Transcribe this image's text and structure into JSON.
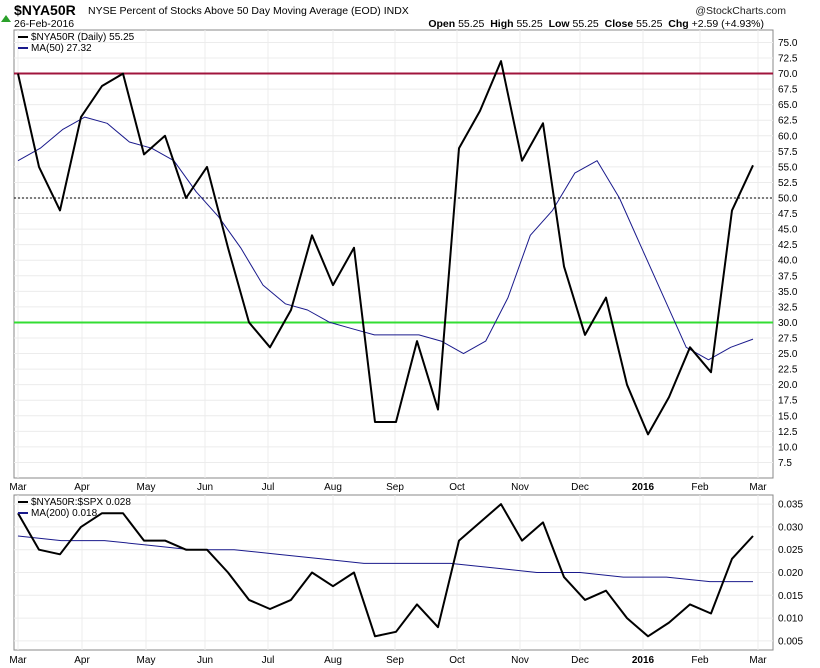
{
  "header": {
    "symbol": "$NYA50R",
    "description": "NYSE Percent of Stocks Above 50 Day Moving Average (EOD)  INDX",
    "brand": "@StockCharts.com",
    "date": "26-Feb-2016",
    "open_label": "Open",
    "open": "55.25",
    "high_label": "High",
    "high": "55.25",
    "low_label": "Low",
    "low": "55.25",
    "close_label": "Close",
    "close": "55.25",
    "chg_label": "Chg",
    "chg": "+2.59 (+4.93%)"
  },
  "colors": {
    "price": "#000000",
    "ma": "#1a1a8c",
    "red_line": "#a0143c",
    "green_line": "#33dd33",
    "grid": "#ececec",
    "up_arrow": "#2aa02a"
  },
  "legend_main": [
    {
      "text": "$NYA50R (Daily) 55.25",
      "color": "#000000"
    },
    {
      "text": "MA(50) 27.32",
      "color": "#1a1a8c"
    }
  ],
  "legend_lower": [
    {
      "text": "$NYA50R:$SPX 0.028",
      "color": "#000000"
    },
    {
      "text": "MA(200) 0.018",
      "color": "#1a1a8c"
    }
  ],
  "month_labels": [
    {
      "label": "Mar",
      "bold": false
    },
    {
      "label": "Apr",
      "bold": false
    },
    {
      "label": "May",
      "bold": false
    },
    {
      "label": "Jun",
      "bold": false
    },
    {
      "label": "Jul",
      "bold": false
    },
    {
      "label": "Aug",
      "bold": false
    },
    {
      "label": "Sep",
      "bold": false
    },
    {
      "label": "Oct",
      "bold": false
    },
    {
      "label": "Nov",
      "bold": false
    },
    {
      "label": "Dec",
      "bold": false
    },
    {
      "label": "2016",
      "bold": true
    },
    {
      "label": "Feb",
      "bold": false
    },
    {
      "label": "Mar",
      "bold": false
    }
  ],
  "chart_data": [
    {
      "type": "line",
      "title": "NYSE Percent of Stocks Above 50 Day Moving Average (EOD)",
      "x_dates": [
        "2015-02-27",
        "2015-03-10",
        "2015-03-20",
        "2015-03-31",
        "2015-04-10",
        "2015-04-21",
        "2015-04-30",
        "2015-05-11",
        "2015-05-21",
        "2015-06-01",
        "2015-06-11",
        "2015-06-22",
        "2015-07-01",
        "2015-07-13",
        "2015-07-23",
        "2015-08-03",
        "2015-08-13",
        "2015-08-24",
        "2015-09-03",
        "2015-09-15",
        "2015-09-25",
        "2015-10-06",
        "2015-10-16",
        "2015-10-27",
        "2015-11-06",
        "2015-11-17",
        "2015-11-27",
        "2015-12-08",
        "2015-12-18",
        "2015-12-30",
        "2016-01-11",
        "2016-01-21",
        "2016-02-02",
        "2016-02-12",
        "2016-02-24",
        "2016-02-26"
      ],
      "ylim": [
        5,
        77
      ],
      "y_ticks": [
        7.5,
        10.0,
        12.5,
        15.0,
        17.5,
        20.0,
        22.5,
        25.0,
        27.5,
        30.0,
        32.5,
        35.0,
        37.5,
        40.0,
        42.5,
        45.0,
        47.5,
        50.0,
        52.5,
        55.0,
        57.5,
        60.0,
        62.5,
        65.0,
        67.5,
        70.0,
        72.5,
        75.0
      ],
      "horizontal_lines": [
        {
          "value": 70,
          "color": "#a0143c"
        },
        {
          "value": 30,
          "color": "#33dd33"
        },
        {
          "value": 50,
          "style": "dotted",
          "color": "#000000"
        }
      ],
      "series": [
        {
          "name": "$NYA50R (Daily)",
          "values": [
            70,
            55,
            48,
            63,
            68,
            70,
            57,
            60,
            50,
            55,
            42,
            30,
            26,
            32,
            44,
            36,
            42,
            14,
            14,
            27,
            16,
            58,
            64,
            72,
            56,
            62,
            39,
            28,
            34,
            20,
            12,
            18,
            26,
            22,
            48,
            55.25
          ]
        },
        {
          "name": "MA(50)",
          "values": [
            56,
            58,
            61,
            63,
            62,
            59,
            58,
            56,
            51,
            47,
            42,
            36,
            33,
            32,
            30,
            29,
            28,
            28,
            28,
            27,
            25,
            27,
            34,
            44,
            48,
            54,
            56,
            50,
            42,
            34,
            26,
            24,
            26,
            27.32
          ]
        }
      ]
    },
    {
      "type": "line",
      "title": "$NYA50R:$SPX",
      "ylim": [
        0.003,
        0.037
      ],
      "y_ticks": [
        0.005,
        0.01,
        0.015,
        0.02,
        0.025,
        0.03,
        0.035
      ],
      "series": [
        {
          "name": "$NYA50R:$SPX",
          "values": [
            0.033,
            0.025,
            0.024,
            0.03,
            0.033,
            0.033,
            0.027,
            0.027,
            0.025,
            0.025,
            0.02,
            0.014,
            0.012,
            0.014,
            0.02,
            0.017,
            0.02,
            0.006,
            0.007,
            0.013,
            0.008,
            0.027,
            0.031,
            0.035,
            0.027,
            0.031,
            0.019,
            0.014,
            0.016,
            0.01,
            0.006,
            0.009,
            0.013,
            0.011,
            0.023,
            0.028
          ]
        },
        {
          "name": "MA(200)",
          "values": [
            0.028,
            0.027,
            0.027,
            0.026,
            0.025,
            0.025,
            0.024,
            0.023,
            0.022,
            0.022,
            0.022,
            0.021,
            0.02,
            0.02,
            0.019,
            0.019,
            0.018,
            0.018
          ]
        }
      ]
    }
  ]
}
